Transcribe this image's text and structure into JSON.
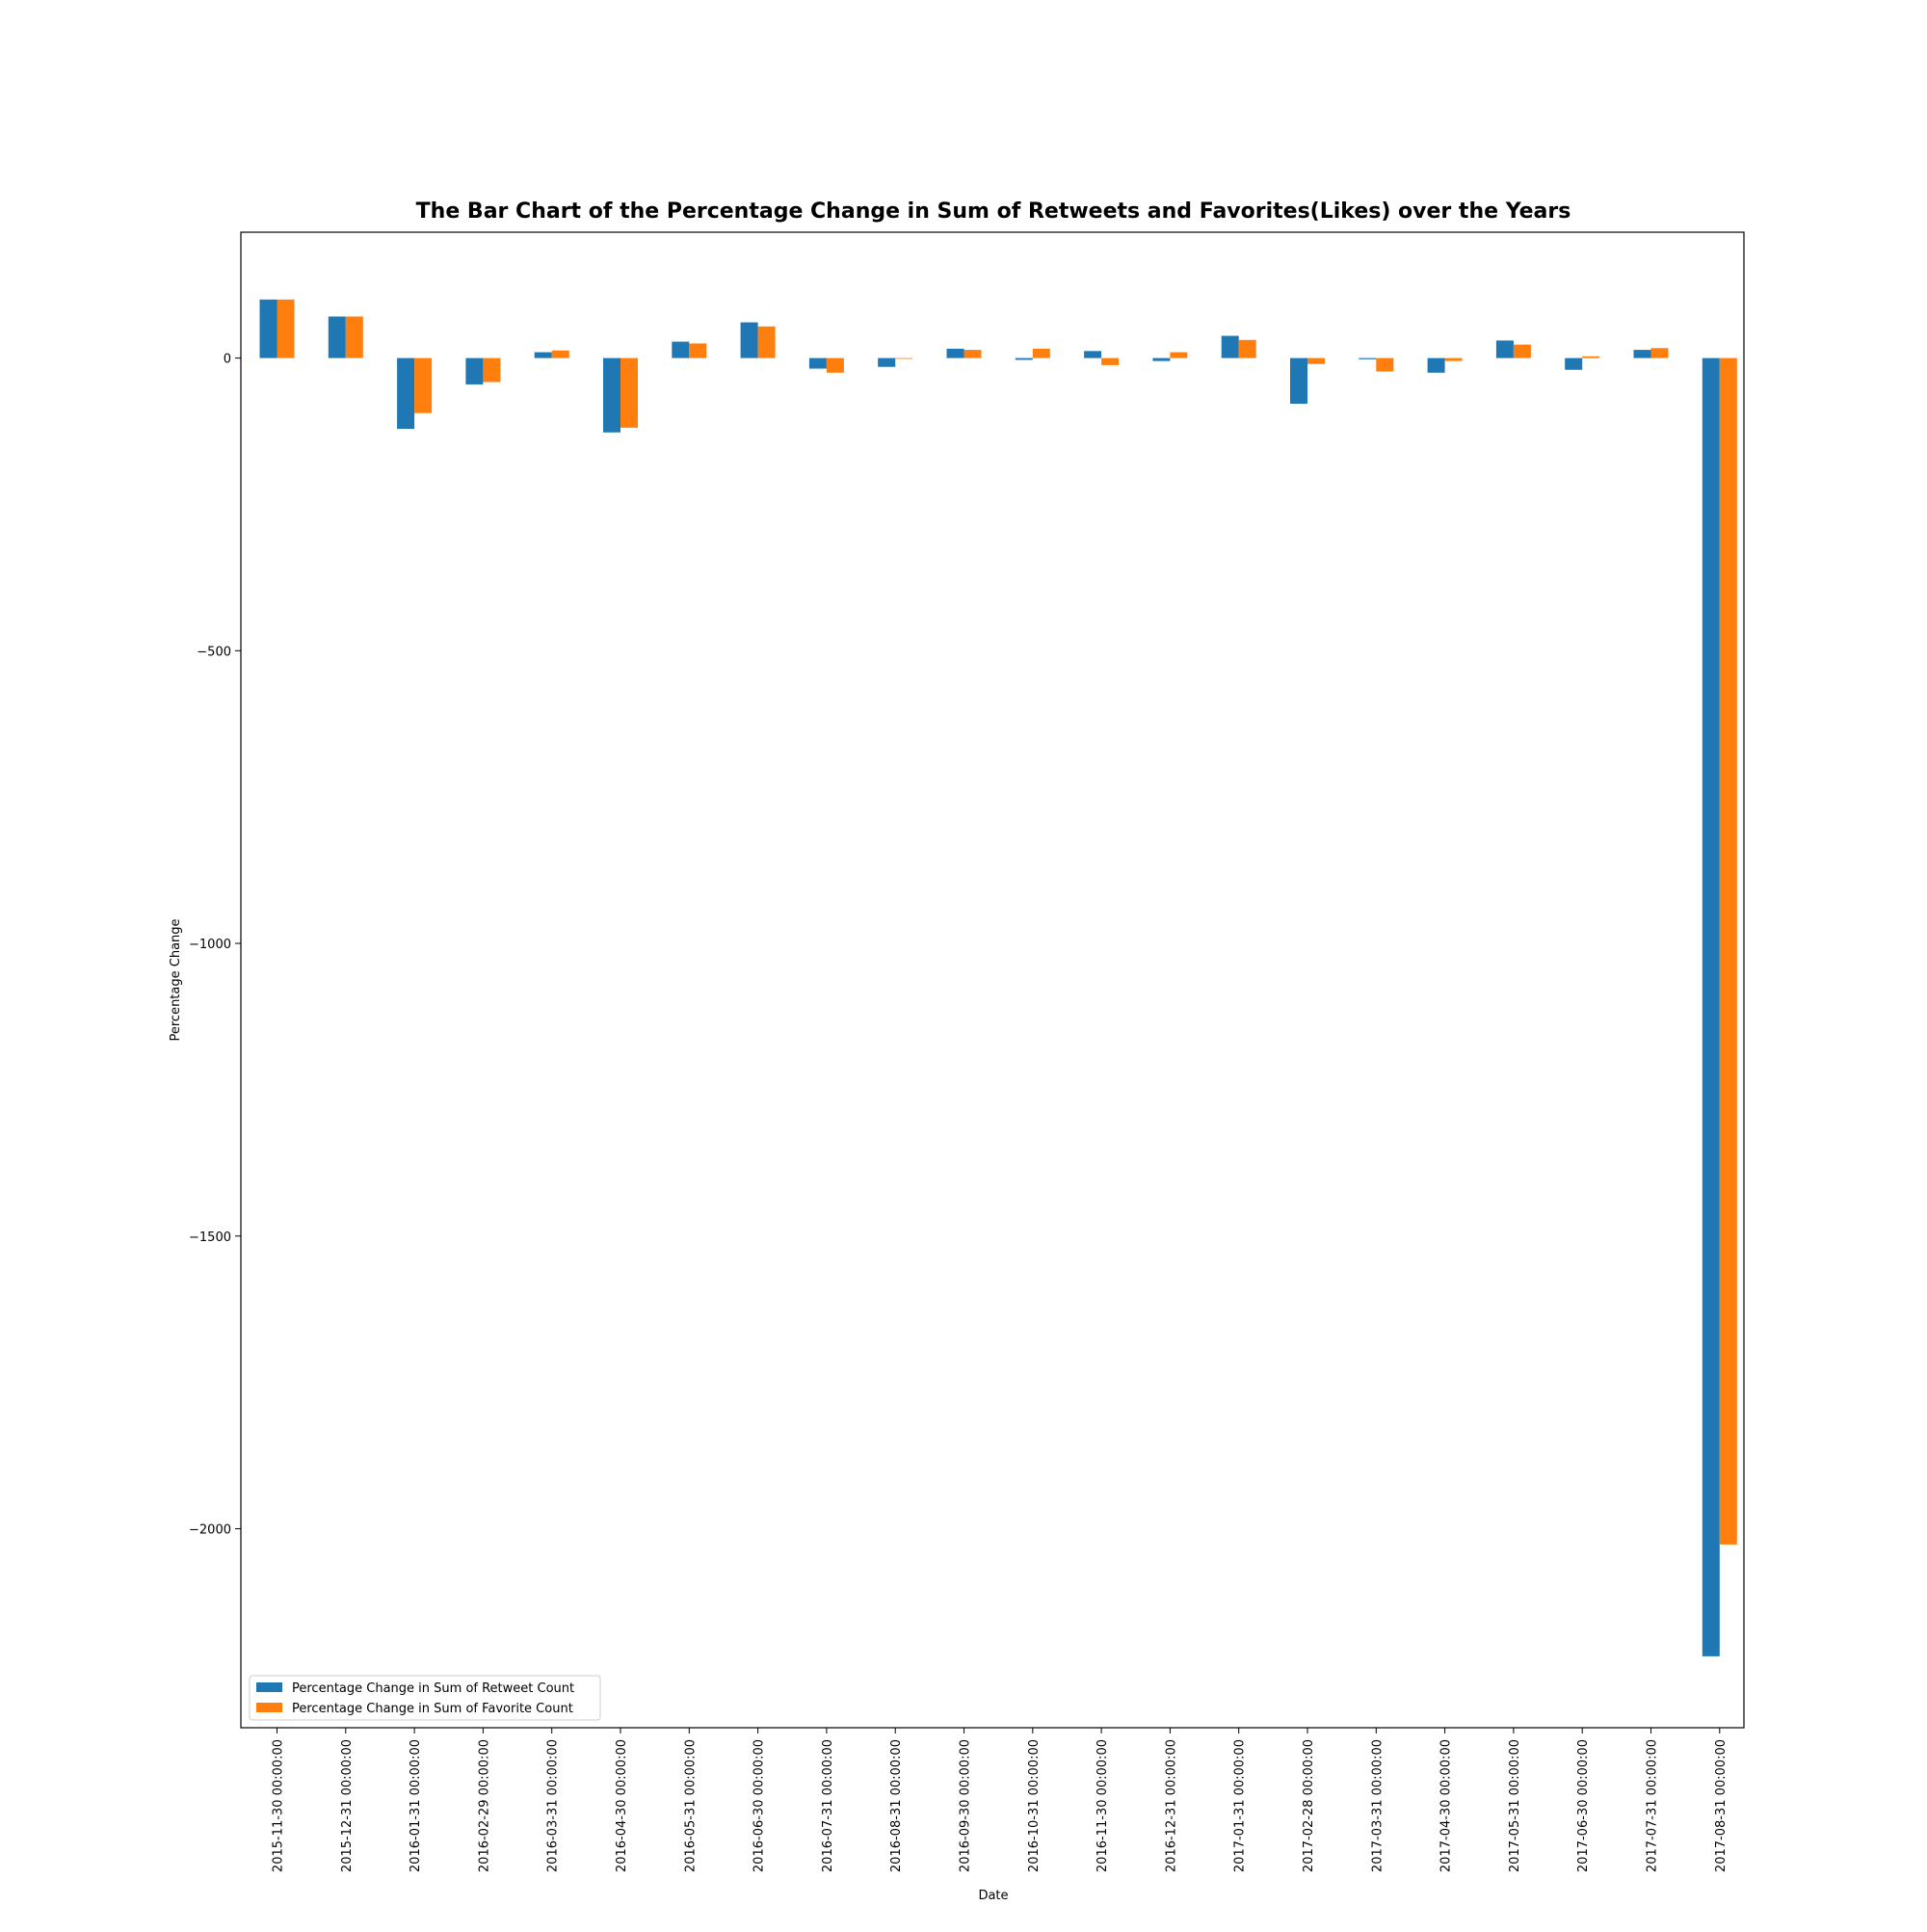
{
  "chart_data": {
    "type": "bar",
    "title": "The Bar Chart of the Percentage Change in Sum of Retweets and Favorites(Likes) over the Years",
    "xlabel": "Date",
    "ylabel": "Percentage Change",
    "ylim": [
      -2340,
      215
    ],
    "yticks": [
      0,
      -500,
      -1000,
      -1500,
      -2000
    ],
    "ytick_labels": [
      "0",
      "−500",
      "−1000",
      "−1500",
      "−2000"
    ],
    "grid": false,
    "legend_position": "lower-left",
    "categories": [
      "2015-11-30 00:00:00",
      "2015-12-31 00:00:00",
      "2016-01-31 00:00:00",
      "2016-02-29 00:00:00",
      "2016-03-31 00:00:00",
      "2016-04-30 00:00:00",
      "2016-05-31 00:00:00",
      "2016-06-30 00:00:00",
      "2016-07-31 00:00:00",
      "2016-08-31 00:00:00",
      "2016-09-30 00:00:00",
      "2016-10-31 00:00:00",
      "2016-11-30 00:00:00",
      "2016-12-31 00:00:00",
      "2017-01-31 00:00:00",
      "2017-02-28 00:00:00",
      "2017-03-31 00:00:00",
      "2017-04-30 00:00:00",
      "2017-05-31 00:00:00",
      "2017-06-30 00:00:00",
      "2017-07-31 00:00:00",
      "2017-08-31 00:00:00"
    ],
    "series": [
      {
        "name": "Percentage Change in Sum of Retweet Count",
        "color": "#1f77b4",
        "values": [
          100,
          71,
          -121,
          -45,
          10,
          -127,
          28,
          61,
          -18,
          -15,
          16,
          -3,
          12,
          -5,
          38,
          -78,
          -2,
          -25,
          30,
          -20,
          14,
          -2218
        ]
      },
      {
        "name": "Percentage Change in Sum of Favorite Count",
        "color": "#ff7f0e",
        "values": [
          100,
          71,
          -94,
          -41,
          13,
          -119,
          25,
          54,
          -25,
          -1,
          14,
          16,
          -12,
          10,
          31,
          -10,
          -23,
          -5,
          23,
          3,
          17,
          -2027
        ]
      }
    ]
  }
}
